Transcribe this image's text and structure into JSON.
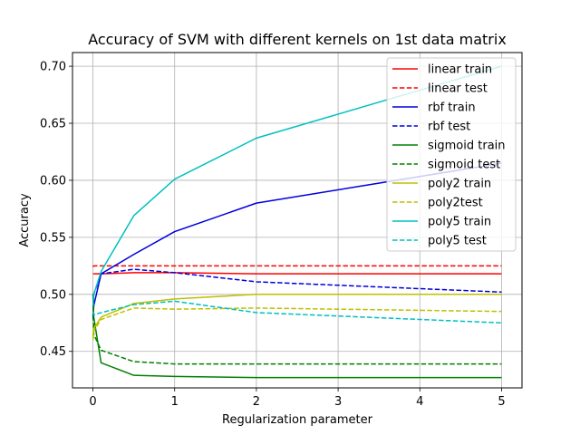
{
  "chart_data": {
    "type": "line",
    "title": "Accuracy of SVM with different kernels on 1st data matrix",
    "xlabel": "Regularization parameter",
    "ylabel": "Accuracy",
    "xlim": [
      -0.25,
      5.25
    ],
    "ylim": [
      0.418,
      0.712
    ],
    "xticks": [
      0,
      1,
      2,
      3,
      4,
      5
    ],
    "yticks": [
      0.45,
      0.5,
      0.55,
      0.6,
      0.65,
      0.7
    ],
    "ytick_labels": [
      "0.45",
      "0.50",
      "0.55",
      "0.60",
      "0.65",
      "0.70"
    ],
    "grid": true,
    "legend_position": "top-right",
    "x": [
      0.001,
      0.01,
      0.1,
      0.5,
      1,
      2,
      5
    ],
    "series": [
      {
        "name": "linear train",
        "color": "#ff0000",
        "dashed": false,
        "values": [
          0.518,
          0.518,
          0.518,
          0.519,
          0.519,
          0.518,
          0.518
        ]
      },
      {
        "name": "linear test",
        "color": "#ff0000",
        "dashed": true,
        "values": [
          0.524,
          0.525,
          0.525,
          0.525,
          0.525,
          0.525,
          0.525
        ]
      },
      {
        "name": "rbf train",
        "color": "#0000dd",
        "dashed": false,
        "values": [
          0.478,
          0.49,
          0.518,
          0.535,
          0.555,
          0.58,
          0.615
        ]
      },
      {
        "name": "rbf test",
        "color": "#0000dd",
        "dashed": true,
        "values": [
          0.48,
          0.5,
          0.518,
          0.522,
          0.519,
          0.511,
          0.502
        ]
      },
      {
        "name": "sigmoid train",
        "color": "#008000",
        "dashed": false,
        "values": [
          0.5,
          0.48,
          0.44,
          0.429,
          0.428,
          0.427,
          0.427
        ]
      },
      {
        "name": "sigmoid test",
        "color": "#008000",
        "dashed": true,
        "values": [
          0.5,
          0.465,
          0.451,
          0.441,
          0.439,
          0.439,
          0.439
        ]
      },
      {
        "name": "poly2 train",
        "color": "#bfbf00",
        "dashed": false,
        "values": [
          0.462,
          0.47,
          0.48,
          0.492,
          0.496,
          0.5,
          0.5
        ]
      },
      {
        "name": "poly2test",
        "color": "#bfbf00",
        "dashed": true,
        "values": [
          0.46,
          0.468,
          0.478,
          0.488,
          0.487,
          0.488,
          0.485
        ]
      },
      {
        "name": "poly5 train",
        "color": "#00bfbf",
        "dashed": false,
        "values": [
          0.49,
          0.5,
          0.52,
          0.569,
          0.601,
          0.637,
          0.7
        ]
      },
      {
        "name": "poly5 test",
        "color": "#00bfbf",
        "dashed": true,
        "values": [
          0.485,
          0.482,
          0.484,
          0.491,
          0.494,
          0.484,
          0.475
        ]
      }
    ]
  }
}
